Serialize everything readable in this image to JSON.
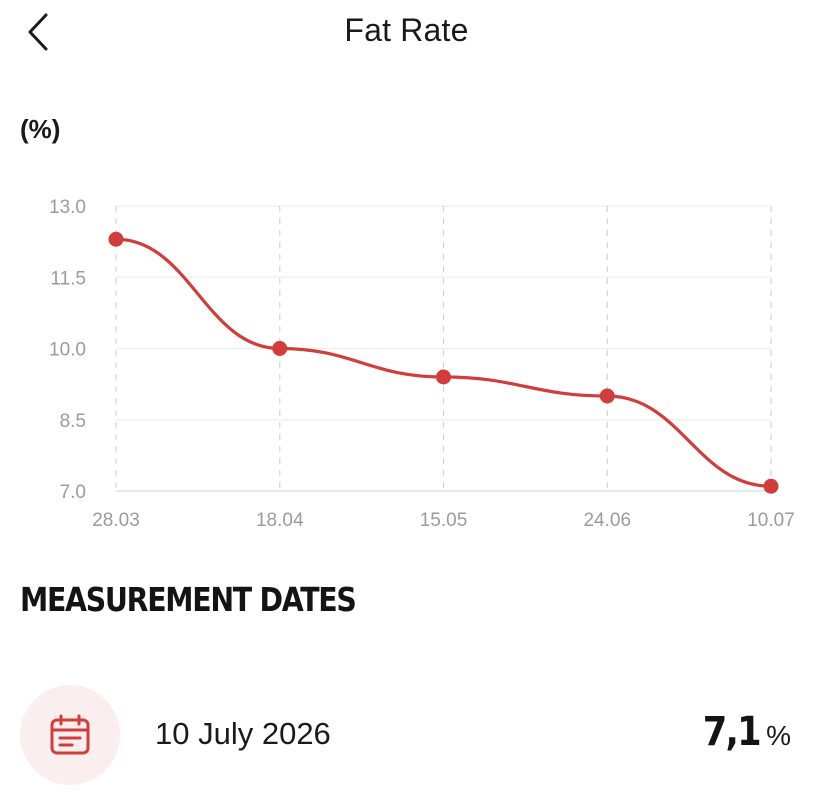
{
  "header": {
    "title": "Fat Rate",
    "back_icon": "chevron-left-icon"
  },
  "chart_unit_label": "(%)",
  "chart_data": {
    "type": "line",
    "title": "",
    "xlabel": "",
    "ylabel": "(%)",
    "categories": [
      "28.03",
      "18.04",
      "15.05",
      "24.06",
      "10.07"
    ],
    "values": [
      12.3,
      10.0,
      9.4,
      9.0,
      7.1
    ],
    "ylim": [
      7.0,
      13.0
    ],
    "yticks": [
      "13.0",
      "11.5",
      "10.0",
      "8.5",
      "7.0"
    ],
    "grid": true,
    "smooth": true,
    "color": "#d13d3b"
  },
  "section_title": "MEASUREMENT DATES",
  "measurements": [
    {
      "date": "10 July 2026",
      "value": "7,1",
      "unit": "%",
      "icon": "calendar-icon"
    }
  ],
  "colors": {
    "accent": "#d13d3b",
    "icon_bg": "#fbeeee"
  }
}
